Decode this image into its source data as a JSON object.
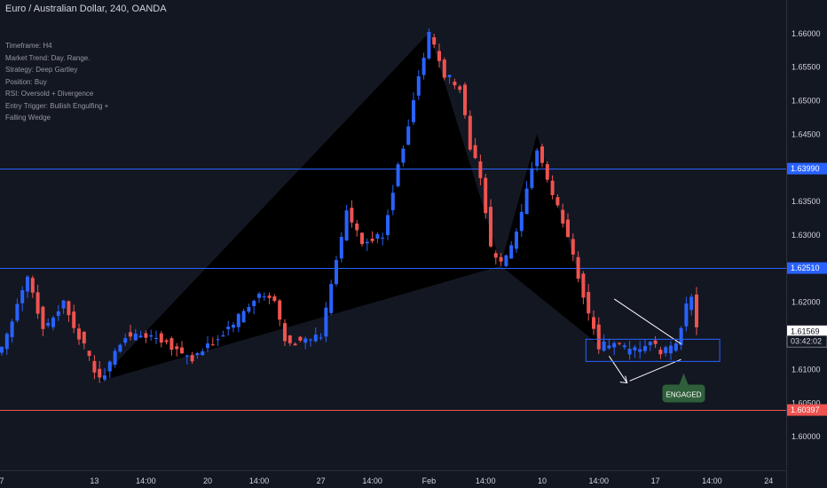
{
  "header": {
    "title": "Euro / Australian Dollar, 240, OANDA"
  },
  "info_panel": [
    "Timeframe: H4",
    "Market Trend: Day. Range.",
    "Strategy: Deep Gartley",
    "Position: Buy",
    "RSI: Oversold + Divergence",
    "Entry Trigger: Bullish Engulfing +",
    "Falling Wedge"
  ],
  "colors": {
    "background": "#131722",
    "up": "#2962ff",
    "down": "#ef5350",
    "hline": "#2962ff",
    "stop_line": "#ef5350",
    "engaged_bg": "#2e5f3a"
  },
  "chart_data": {
    "type": "candlestick",
    "symbol": "EURAUD",
    "timeframe": "240",
    "y_axis": {
      "range": [
        1.595,
        1.665
      ],
      "tick_labels": [
        "1.66000",
        "1.65500",
        "1.65000",
        "1.64500",
        "1.64000",
        "1.63500",
        "1.63000",
        "1.62500",
        "1.62000",
        "1.61500",
        "1.61000",
        "1.60500",
        "1.60000"
      ],
      "ticks": [
        1.66,
        1.655,
        1.65,
        1.645,
        1.64,
        1.635,
        1.63,
        1.625,
        1.62,
        1.615,
        1.61,
        1.605,
        1.6
      ]
    },
    "x_axis": {
      "tick_labels": [
        "7",
        "13",
        "14:00",
        "20",
        "14:00",
        "27",
        "14:00",
        "Feb",
        "14:00",
        "10",
        "14:00",
        "17",
        "14:00",
        "24"
      ],
      "tick_positions": [
        0,
        18,
        28,
        40,
        50,
        62,
        72,
        83,
        94,
        105,
        116,
        127,
        138,
        149
      ]
    },
    "price_labels": [
      {
        "text": "1.63990",
        "value": 1.6399,
        "style": "blue"
      },
      {
        "text": "1.62510",
        "value": 1.6251,
        "style": "blue"
      },
      {
        "text": "1.61569",
        "value": 1.61569,
        "style": "light"
      },
      {
        "text": "03:42:02",
        "value": 1.6142,
        "style": "dark"
      },
      {
        "text": "1.60397",
        "value": 1.60397,
        "style": "red"
      }
    ],
    "horizontal_lines": [
      {
        "value": 1.6399,
        "color": "blue"
      },
      {
        "value": 1.6251,
        "color": "blue"
      },
      {
        "value": 1.60397,
        "color": "red"
      }
    ],
    "pattern_points": [
      {
        "x": 19,
        "y": 1.6083
      },
      {
        "x": 83,
        "y": 1.66
      },
      {
        "x": 97,
        "y": 1.6255
      },
      {
        "x": 104,
        "y": 1.6448
      },
      {
        "x": 116,
        "y": 1.6138
      }
    ],
    "anchors": [
      {
        "x": 0,
        "y": 1.6135
      },
      {
        "x": 5,
        "y": 1.624
      },
      {
        "x": 8,
        "y": 1.616
      },
      {
        "x": 12,
        "y": 1.62
      },
      {
        "x": 19,
        "y": 1.6083
      },
      {
        "x": 24,
        "y": 1.615
      },
      {
        "x": 30,
        "y": 1.615
      },
      {
        "x": 37,
        "y": 1.6115
      },
      {
        "x": 42,
        "y": 1.6145
      },
      {
        "x": 50,
        "y": 1.621
      },
      {
        "x": 53,
        "y": 1.62
      },
      {
        "x": 55,
        "y": 1.6145
      },
      {
        "x": 58,
        "y": 1.614
      },
      {
        "x": 62,
        "y": 1.615
      },
      {
        "x": 64,
        "y": 1.623
      },
      {
        "x": 67,
        "y": 1.6335
      },
      {
        "x": 70,
        "y": 1.6285
      },
      {
        "x": 74,
        "y": 1.63
      },
      {
        "x": 77,
        "y": 1.64
      },
      {
        "x": 80,
        "y": 1.65
      },
      {
        "x": 83,
        "y": 1.66
      },
      {
        "x": 86,
        "y": 1.654
      },
      {
        "x": 89,
        "y": 1.652
      },
      {
        "x": 91,
        "y": 1.643
      },
      {
        "x": 93,
        "y": 1.639
      },
      {
        "x": 95,
        "y": 1.628
      },
      {
        "x": 97,
        "y": 1.6255
      },
      {
        "x": 100,
        "y": 1.63
      },
      {
        "x": 103,
        "y": 1.6395
      },
      {
        "x": 104,
        "y": 1.643
      },
      {
        "x": 107,
        "y": 1.636
      },
      {
        "x": 110,
        "y": 1.63
      },
      {
        "x": 113,
        "y": 1.621
      },
      {
        "x": 116,
        "y": 1.6135
      },
      {
        "x": 119,
        "y": 1.614
      },
      {
        "x": 122,
        "y": 1.6125
      },
      {
        "x": 126,
        "y": 1.614
      },
      {
        "x": 128,
        "y": 1.6125
      },
      {
        "x": 131,
        "y": 1.614
      },
      {
        "x": 133,
        "y": 1.6195
      },
      {
        "x": 134,
        "y": 1.621
      },
      {
        "x": 135,
        "y": 1.6157
      }
    ],
    "wedge": {
      "upper": [
        {
          "x": 119,
          "y": 1.6205
        },
        {
          "x": 132,
          "y": 1.6138
        }
      ],
      "lower": [
        {
          "x": 122,
          "y": 1.6083
        },
        {
          "x": 132,
          "y": 1.6115
        }
      ],
      "arrow": [
        {
          "x": 118,
          "y": 1.612
        },
        {
          "x": 121.5,
          "y": 1.608
        }
      ]
    },
    "entry_box": {
      "x0": 113.5,
      "x1": 139.5,
      "y0": 1.6112,
      "y1": 1.6145
    },
    "engaged_label": {
      "text": "ENGAGED",
      "x": 132.5,
      "y": 1.6063
    }
  }
}
